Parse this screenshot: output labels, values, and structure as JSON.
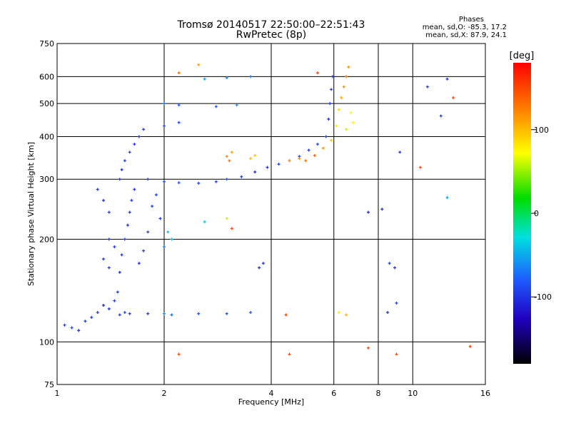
{
  "header": {
    "title_line1": "Tromsø 20140517 22:50:00–22:51:43",
    "title_line2": "RwPretec (8p)"
  },
  "stats": {
    "heading": "Phases",
    "line_o": "mean, sd,O: -85.3, 17.2",
    "line_x": "mean, sd,X:  87.9, 24.1"
  },
  "chart_data": {
    "type": "scatter",
    "xlabel": "Frequency [MHz]",
    "ylabel": "Stationary phase Virtual Height [km]",
    "xscale": "log",
    "yscale": "log",
    "xlim": [
      1,
      16
    ],
    "ylim": [
      75,
      750
    ],
    "xticks": [
      1,
      2,
      4,
      6,
      8,
      10,
      16
    ],
    "xtick_labels": [
      "1",
      "2",
      "4",
      "6",
      "8",
      "10",
      "16"
    ],
    "yticks": [
      75,
      100,
      200,
      300,
      400,
      500,
      600,
      750
    ],
    "ytick_labels": [
      "75",
      "100",
      "200",
      "300",
      "400",
      "500",
      "600",
      "750"
    ],
    "grid": true,
    "colorbar": {
      "label": "[deg]",
      "range": [
        -180,
        180
      ],
      "ticks": [
        100,
        0,
        -100
      ],
      "tick_labels": [
        "100",
        "0",
        "-100"
      ]
    },
    "series": [
      {
        "values": [
          [
            1.05,
            112,
            -95
          ],
          [
            1.1,
            110,
            -90
          ],
          [
            1.15,
            108,
            -100
          ],
          [
            1.2,
            115,
            -98
          ],
          [
            1.25,
            118,
            -92
          ],
          [
            1.3,
            122,
            -95
          ],
          [
            1.35,
            128,
            -105
          ],
          [
            1.4,
            125,
            -99
          ],
          [
            1.45,
            132,
            -96
          ],
          [
            1.5,
            120,
            -90
          ],
          [
            1.55,
            122,
            -88
          ],
          [
            1.6,
            121,
            -92
          ],
          [
            1.8,
            121,
            -96
          ],
          [
            2.0,
            121,
            -60
          ],
          [
            2.1,
            120,
            -70
          ],
          [
            2.5,
            121,
            -85
          ],
          [
            3.0,
            121,
            -80
          ],
          [
            3.5,
            122,
            -82
          ],
          [
            1.48,
            140,
            -95
          ],
          [
            1.5,
            160,
            -102
          ],
          [
            1.52,
            180,
            -98
          ],
          [
            1.55,
            200,
            -94
          ],
          [
            1.58,
            220,
            -100
          ],
          [
            1.6,
            240,
            -96
          ],
          [
            1.62,
            260,
            -92
          ],
          [
            1.65,
            280,
            -98
          ],
          [
            1.5,
            300,
            -94
          ],
          [
            1.52,
            320,
            -100
          ],
          [
            1.55,
            340,
            -96
          ],
          [
            1.6,
            360,
            -90
          ],
          [
            1.65,
            380,
            -98
          ],
          [
            1.7,
            400,
            -102
          ],
          [
            1.75,
            420,
            -95
          ],
          [
            1.7,
            170,
            -100
          ],
          [
            1.75,
            185,
            -92
          ],
          [
            1.8,
            210,
            -96
          ],
          [
            1.85,
            250,
            -90
          ],
          [
            1.9,
            270,
            -88
          ],
          [
            1.95,
            230,
            -96
          ],
          [
            2.0,
            190,
            -70
          ],
          [
            2.05,
            210,
            -40
          ],
          [
            2.1,
            200,
            -45
          ],
          [
            1.8,
            300,
            -95
          ],
          [
            2.0,
            295,
            -80
          ],
          [
            2.2,
            293,
            -85
          ],
          [
            2.5,
            292,
            -88
          ],
          [
            2.8,
            295,
            -90
          ],
          [
            3.0,
            300,
            -85
          ],
          [
            3.3,
            305,
            -95
          ],
          [
            3.6,
            315,
            -100
          ],
          [
            3.9,
            325,
            -98
          ],
          [
            4.2,
            332,
            -90
          ],
          [
            4.5,
            340,
            -85
          ],
          [
            4.8,
            350,
            -92
          ],
          [
            5.1,
            365,
            -95
          ],
          [
            5.4,
            380,
            -90
          ],
          [
            5.7,
            400,
            -96
          ],
          [
            5.8,
            450,
            -98
          ],
          [
            5.85,
            500,
            -95
          ],
          [
            5.9,
            550,
            -92
          ],
          [
            5.95,
            600,
            -100
          ],
          [
            3.0,
            350,
            120
          ],
          [
            3.05,
            340,
            130
          ],
          [
            3.1,
            360,
            110
          ],
          [
            3.5,
            345,
            100
          ],
          [
            3.6,
            352,
            95
          ],
          [
            4.5,
            340,
            110
          ],
          [
            4.8,
            345,
            120
          ],
          [
            5.0,
            340,
            130
          ],
          [
            5.3,
            352,
            140
          ],
          [
            5.6,
            370,
            115
          ],
          [
            5.9,
            390,
            95
          ],
          [
            6.1,
            430,
            80
          ],
          [
            6.2,
            480,
            90
          ],
          [
            6.3,
            520,
            110
          ],
          [
            6.4,
            560,
            120
          ],
          [
            6.5,
            600,
            130
          ],
          [
            6.6,
            640,
            115
          ],
          [
            6.7,
            470,
            70
          ],
          [
            6.8,
            440,
            75
          ],
          [
            6.5,
            420,
            60
          ],
          [
            2.0,
            500,
            -70
          ],
          [
            2.2,
            495,
            -80
          ],
          [
            2.8,
            490,
            -85
          ],
          [
            3.2,
            495,
            -60
          ],
          [
            2.6,
            590,
            -50
          ],
          [
            3.0,
            595,
            -60
          ],
          [
            3.5,
            600,
            -70
          ],
          [
            2.0,
            430,
            -90
          ],
          [
            2.2,
            440,
            -85
          ],
          [
            1.3,
            280,
            -96
          ],
          [
            1.35,
            260,
            -98
          ],
          [
            1.4,
            240,
            -92
          ],
          [
            1.4,
            200,
            -100
          ],
          [
            1.45,
            190,
            -95
          ],
          [
            1.35,
            175,
            -100
          ],
          [
            1.4,
            165,
            -95
          ],
          [
            2.6,
            225,
            -40
          ],
          [
            3.0,
            230,
            60
          ],
          [
            3.1,
            215,
            150
          ],
          [
            2.2,
            615,
            130
          ],
          [
            2.5,
            650,
            110
          ],
          [
            5.4,
            615,
            150
          ],
          [
            4.4,
            120,
            150
          ],
          [
            6.2,
            122,
            80
          ],
          [
            6.5,
            120,
            100
          ],
          [
            8.5,
            122,
            -100
          ],
          [
            9.0,
            130,
            -90
          ],
          [
            8.6,
            170,
            -95
          ],
          [
            8.9,
            165,
            -95
          ],
          [
            9.2,
            360,
            -95
          ],
          [
            10.5,
            325,
            150
          ],
          [
            11.0,
            560,
            -95
          ],
          [
            12.0,
            460,
            -95
          ],
          [
            12.5,
            590,
            -95
          ],
          [
            13.0,
            520,
            150
          ],
          [
            14.5,
            97,
            150
          ],
          [
            7.5,
            96,
            150
          ],
          [
            9.0,
            92,
            150
          ],
          [
            2.2,
            92,
            150
          ],
          [
            4.5,
            92,
            150
          ],
          [
            12.5,
            265,
            -50
          ],
          [
            7.5,
            240,
            -100
          ],
          [
            8.2,
            245,
            -100
          ],
          [
            3.8,
            170,
            -100
          ],
          [
            3.7,
            165,
            -100
          ]
        ]
      }
    ]
  }
}
